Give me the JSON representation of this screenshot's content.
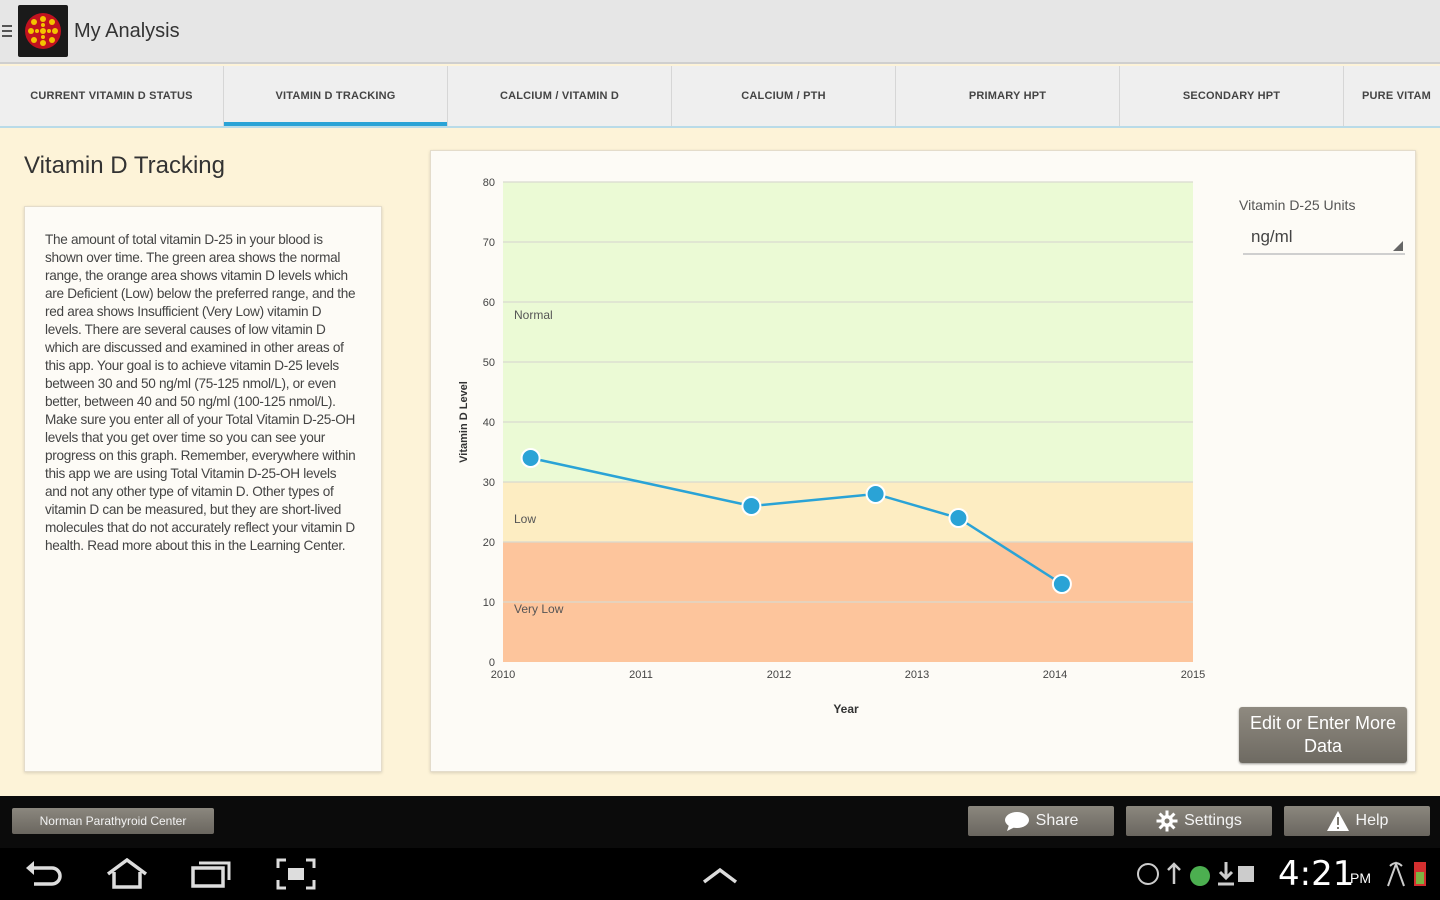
{
  "app": {
    "title": "My Analysis"
  },
  "tabs": [
    {
      "label": "CURRENT VITAMIN D STATUS"
    },
    {
      "label": "VITAMIN D TRACKING"
    },
    {
      "label": "CALCIUM / VITAMIN D"
    },
    {
      "label": "CALCIUM / PTH"
    },
    {
      "label": "PRIMARY HPT"
    },
    {
      "label": "SECONDARY HPT"
    },
    {
      "label": "PURE VITAM"
    }
  ],
  "main": {
    "section_title": "Vitamin D Tracking",
    "description": "The amount of total vitamin D-25 in your blood is shown over time. The green area shows the normal range, the orange area shows vitamin D levels which are Deficient (Low) below the preferred range, and the red area shows Insufficient (Very Low) vitamin D levels. There are several causes of low vitamin D which are discussed and examined in other areas of this app. Your goal is to achieve vitamin D-25 levels between 30 and 50 ng/ml (75-125 nmol/L), or even better, between 40 and 50 ng/ml (100-125 nmol/L). Make sure you enter all of your Total Vitamin D-25-OH levels that you get over time so you can see your progress on this graph. Remember, everywhere within this app we are using Total Vitamin D-25-OH levels and not any other type of vitamin D. Other types of vitamin D can be measured, but they are short-lived molecules that do not accurately reflect your vitamin D health. Read more about this in the Learning Center."
  },
  "controls": {
    "units_label": "Vitamin D-25 Units",
    "units_value": "ng/ml",
    "edit_button": "Edit or Enter More Data"
  },
  "bottom": {
    "npc_label": "Norman Parathyroid Center",
    "share_label": "Share",
    "settings_label": "Settings",
    "help_label": "Help"
  },
  "status": {
    "time": "4:21",
    "ampm": "PM"
  },
  "colors": {
    "accent": "#2aa3d6",
    "normal": "#ebfad5",
    "low": "#fdedc2",
    "very_low": "#fdc59c",
    "line": "#2aa3d6"
  },
  "chart_data": {
    "type": "line",
    "title": "",
    "xlabel": "Year",
    "ylabel": "Vitamin D Level",
    "xlim": [
      2010,
      2015
    ],
    "ylim": [
      0,
      80
    ],
    "x_ticks": [
      "2010",
      "2011",
      "2012",
      "2013",
      "2014",
      "2015"
    ],
    "y_ticks": [
      "0",
      "10",
      "20",
      "30",
      "40",
      "50",
      "60",
      "70",
      "80"
    ],
    "bands": [
      {
        "label": "Normal",
        "from": 30,
        "to": 80
      },
      {
        "label": "Low",
        "from": 20,
        "to": 30
      },
      {
        "label": "Very Low",
        "from": 0,
        "to": 20
      }
    ],
    "series": [
      {
        "x": [
          2010.2,
          2011.8,
          2012.7,
          2013.3,
          2014.05
        ],
        "values": [
          34,
          26,
          28,
          24,
          13
        ]
      }
    ],
    "grid": true
  }
}
